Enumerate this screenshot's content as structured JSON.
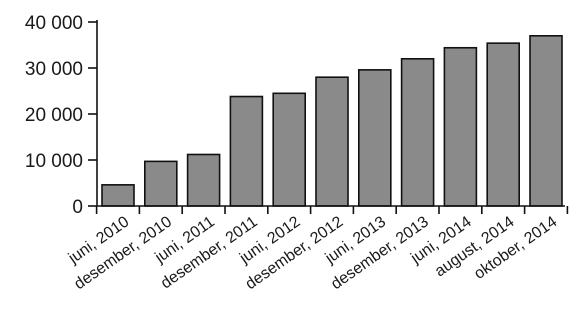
{
  "chart_data": {
    "type": "bar",
    "categories": [
      "juni, 2010",
      "desember, 2010",
      "juni, 2011",
      "desember, 2011",
      "juni, 2012",
      "desember, 2012",
      "juni, 2013",
      "desember, 2013",
      "juni, 2014",
      "august, 2014",
      "oktober, 2014"
    ],
    "values": [
      4600,
      9700,
      11200,
      23800,
      24500,
      28000,
      29600,
      32000,
      34400,
      35400,
      37000
    ],
    "title": "",
    "xlabel": "",
    "ylabel": "",
    "ylim": [
      0,
      40000
    ],
    "yticks": [
      0,
      10000,
      20000,
      30000,
      40000
    ],
    "ytick_labels": [
      "0",
      "10 000",
      "20 000",
      "30 000",
      "40 000"
    ],
    "grid": false,
    "colors": {
      "bar_fill": "#8a8a8a",
      "bar_stroke": "#111111",
      "axis": "#111111"
    }
  }
}
